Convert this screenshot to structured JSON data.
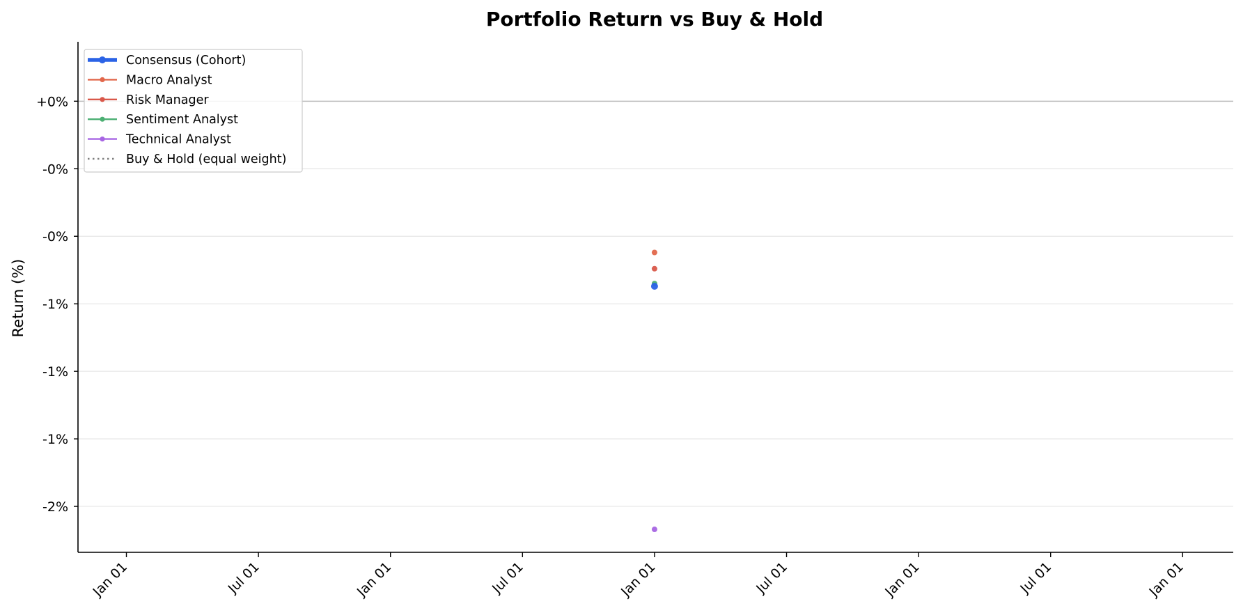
{
  "chart_data": {
    "type": "line",
    "title": "Portfolio Return vs Buy & Hold",
    "xlabel": "",
    "ylabel": "Return (%)",
    "x_tick_labels": [
      "Jan 01",
      "Jul 01",
      "Jan 01",
      "Jul 01",
      "Jan 01",
      "Jul 01",
      "Jan 01",
      "Jul 01",
      "Jan 01"
    ],
    "y_tick_labels": [
      "+0%",
      "-0%",
      "-0%",
      "-1%",
      "-1%",
      "-1%",
      "-2%"
    ],
    "y_ticks": [
      0.0,
      -0.25,
      -0.5,
      -0.75,
      -1.0,
      -1.25,
      -1.5
    ],
    "ylim": [
      -1.67,
      0.22
    ],
    "x_tick_positions": [
      0,
      6,
      12,
      18,
      24,
      30,
      36,
      42,
      48
    ],
    "xlim": [
      -2.2,
      50.3
    ],
    "baseline": 0.0,
    "grid": "y",
    "legend_position": "top-left",
    "series": [
      {
        "name": "Consensus (Cohort)",
        "color": "#2b63e6",
        "style": "solid-thick",
        "x": [
          24
        ],
        "y": [
          -0.685
        ]
      },
      {
        "name": "Macro Analyst",
        "color": "#e2674b",
        "style": "solid",
        "x": [
          24
        ],
        "y": [
          -0.56
        ]
      },
      {
        "name": "Risk Manager",
        "color": "#d9584a",
        "style": "solid",
        "x": [
          24
        ],
        "y": [
          -0.62
        ]
      },
      {
        "name": "Sentiment Analyst",
        "color": "#4caf73",
        "style": "solid",
        "x": [
          24
        ],
        "y": [
          -0.675
        ]
      },
      {
        "name": "Technical Analyst",
        "color": "#a765e3",
        "style": "solid",
        "x": [
          24
        ],
        "y": [
          -1.585
        ]
      },
      {
        "name": "Buy & Hold (equal weight)",
        "color": "#7f7f7f",
        "style": "dotted",
        "x": [],
        "y": []
      }
    ]
  }
}
